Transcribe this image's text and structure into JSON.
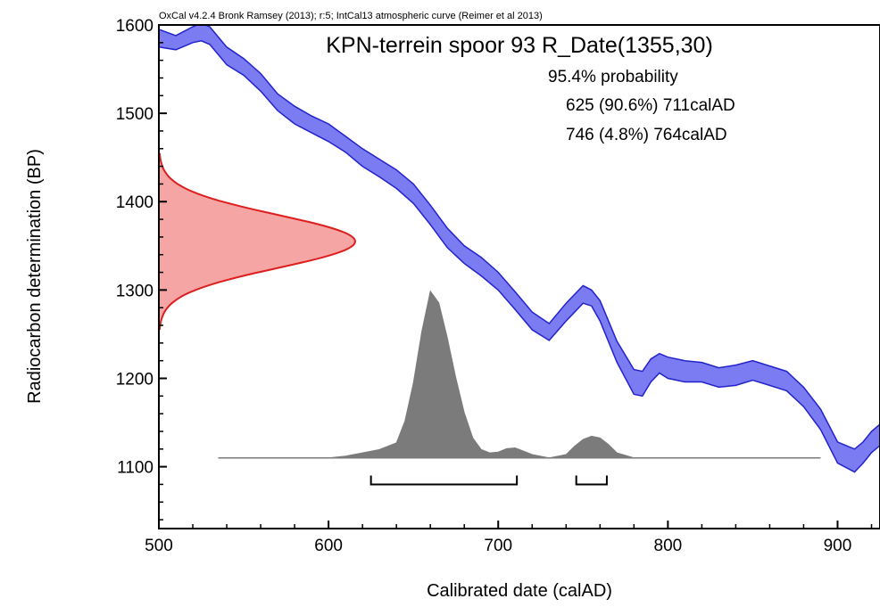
{
  "chart_data": {
    "type": "area",
    "header": "OxCal v4.2.4 Bronk Ramsey (2013); r:5; IntCal13 atmospheric curve (Reimer et al 2013)",
    "title": "KPN-terrein spoor 93 R_Date(1355,30)",
    "xlabel": "Calibrated date (calAD)",
    "ylabel": "Radiocarbon determination (BP)",
    "xlim": [
      500,
      925
    ],
    "ylim": [
      1030,
      1600
    ],
    "x_ticks": [
      500,
      600,
      700,
      800,
      900
    ],
    "y_ticks": [
      1100,
      1200,
      1300,
      1400,
      1500,
      1600
    ],
    "grid": false,
    "colors": {
      "curve_fill": "#7b7bf2",
      "curve_edge": "#2323cc",
      "date_fill": "#f6a5a5",
      "date_edge": "#dd1e1e",
      "posterior_fill": "#7b7b7b"
    },
    "annotations": {
      "probability_label": "95.4% probability",
      "ranges": [
        {
          "from": 625,
          "percent": "90.6%",
          "to": 711,
          "text": "625 (90.6%) 711calAD"
        },
        {
          "from": 746,
          "percent": "4.8%",
          "to": 764,
          "text": "746 (4.8%) 764calAD"
        }
      ]
    },
    "series": [
      {
        "name": "IntCal13",
        "kind": "band",
        "x": [
          500,
          510,
          520,
          525,
          530,
          540,
          550,
          560,
          570,
          580,
          590,
          600,
          610,
          620,
          630,
          640,
          650,
          660,
          670,
          680,
          690,
          700,
          710,
          720,
          730,
          740,
          750,
          755,
          760,
          770,
          780,
          785,
          790,
          795,
          800,
          810,
          820,
          830,
          840,
          850,
          860,
          870,
          880,
          890,
          900,
          910,
          915,
          920,
          925
        ],
        "upper": [
          1595,
          1588,
          1598,
          1602,
          1598,
          1575,
          1562,
          1545,
          1522,
          1508,
          1497,
          1488,
          1474,
          1460,
          1448,
          1436,
          1420,
          1396,
          1370,
          1350,
          1337,
          1320,
          1298,
          1275,
          1262,
          1285,
          1305,
          1300,
          1288,
          1242,
          1210,
          1208,
          1222,
          1228,
          1224,
          1220,
          1218,
          1212,
          1215,
          1220,
          1214,
          1208,
          1190,
          1165,
          1128,
          1120,
          1128,
          1140,
          1148
        ],
        "lower": [
          1575,
          1572,
          1580,
          1582,
          1578,
          1555,
          1543,
          1525,
          1503,
          1488,
          1478,
          1468,
          1456,
          1440,
          1428,
          1415,
          1398,
          1374,
          1348,
          1330,
          1316,
          1300,
          1278,
          1255,
          1243,
          1265,
          1285,
          1282,
          1265,
          1218,
          1182,
          1180,
          1196,
          1206,
          1200,
          1196,
          1196,
          1190,
          1192,
          1198,
          1192,
          1186,
          1168,
          1142,
          1104,
          1094,
          1104,
          1116,
          1124
        ]
      },
      {
        "name": "R_Date(1355,30)",
        "kind": "density_y",
        "mean_bp": 1355,
        "sigma": 30,
        "range": [
          1255,
          1455
        ]
      },
      {
        "name": "Calibrated",
        "kind": "density_x",
        "baseline_range": [
          535,
          890
        ],
        "x": [
          535,
          600,
          610,
          620,
          630,
          640,
          645,
          650,
          655,
          660,
          665,
          670,
          675,
          680,
          685,
          690,
          695,
          700,
          705,
          710,
          715,
          720,
          730,
          740,
          745,
          750,
          755,
          760,
          765,
          770,
          780,
          890
        ],
        "density": [
          0,
          0,
          0.01,
          0.03,
          0.05,
          0.09,
          0.22,
          0.45,
          0.76,
          1.0,
          0.93,
          0.72,
          0.48,
          0.27,
          0.12,
          0.05,
          0.03,
          0.035,
          0.055,
          0.06,
          0.04,
          0.02,
          0.0,
          0.02,
          0.07,
          0.11,
          0.13,
          0.12,
          0.08,
          0.03,
          0.0,
          0
        ]
      }
    ]
  }
}
